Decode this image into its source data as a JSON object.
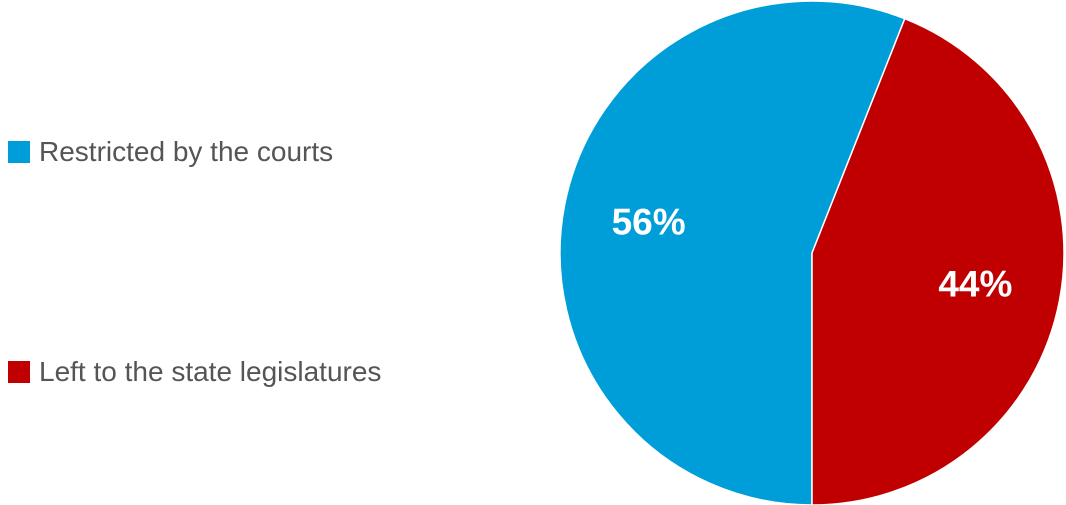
{
  "chart_data": {
    "type": "pie",
    "title": "",
    "categories": [
      "Restricted by the courts",
      "Left to the state legislatures"
    ],
    "values": [
      56,
      44
    ],
    "data_labels": [
      "56%",
      "44%"
    ],
    "colors": [
      "#009ed8",
      "#c00000"
    ],
    "legend": {
      "placement": "left",
      "entries": [
        "Restricted by the courts",
        "Left to the state legislatures"
      ]
    }
  }
}
